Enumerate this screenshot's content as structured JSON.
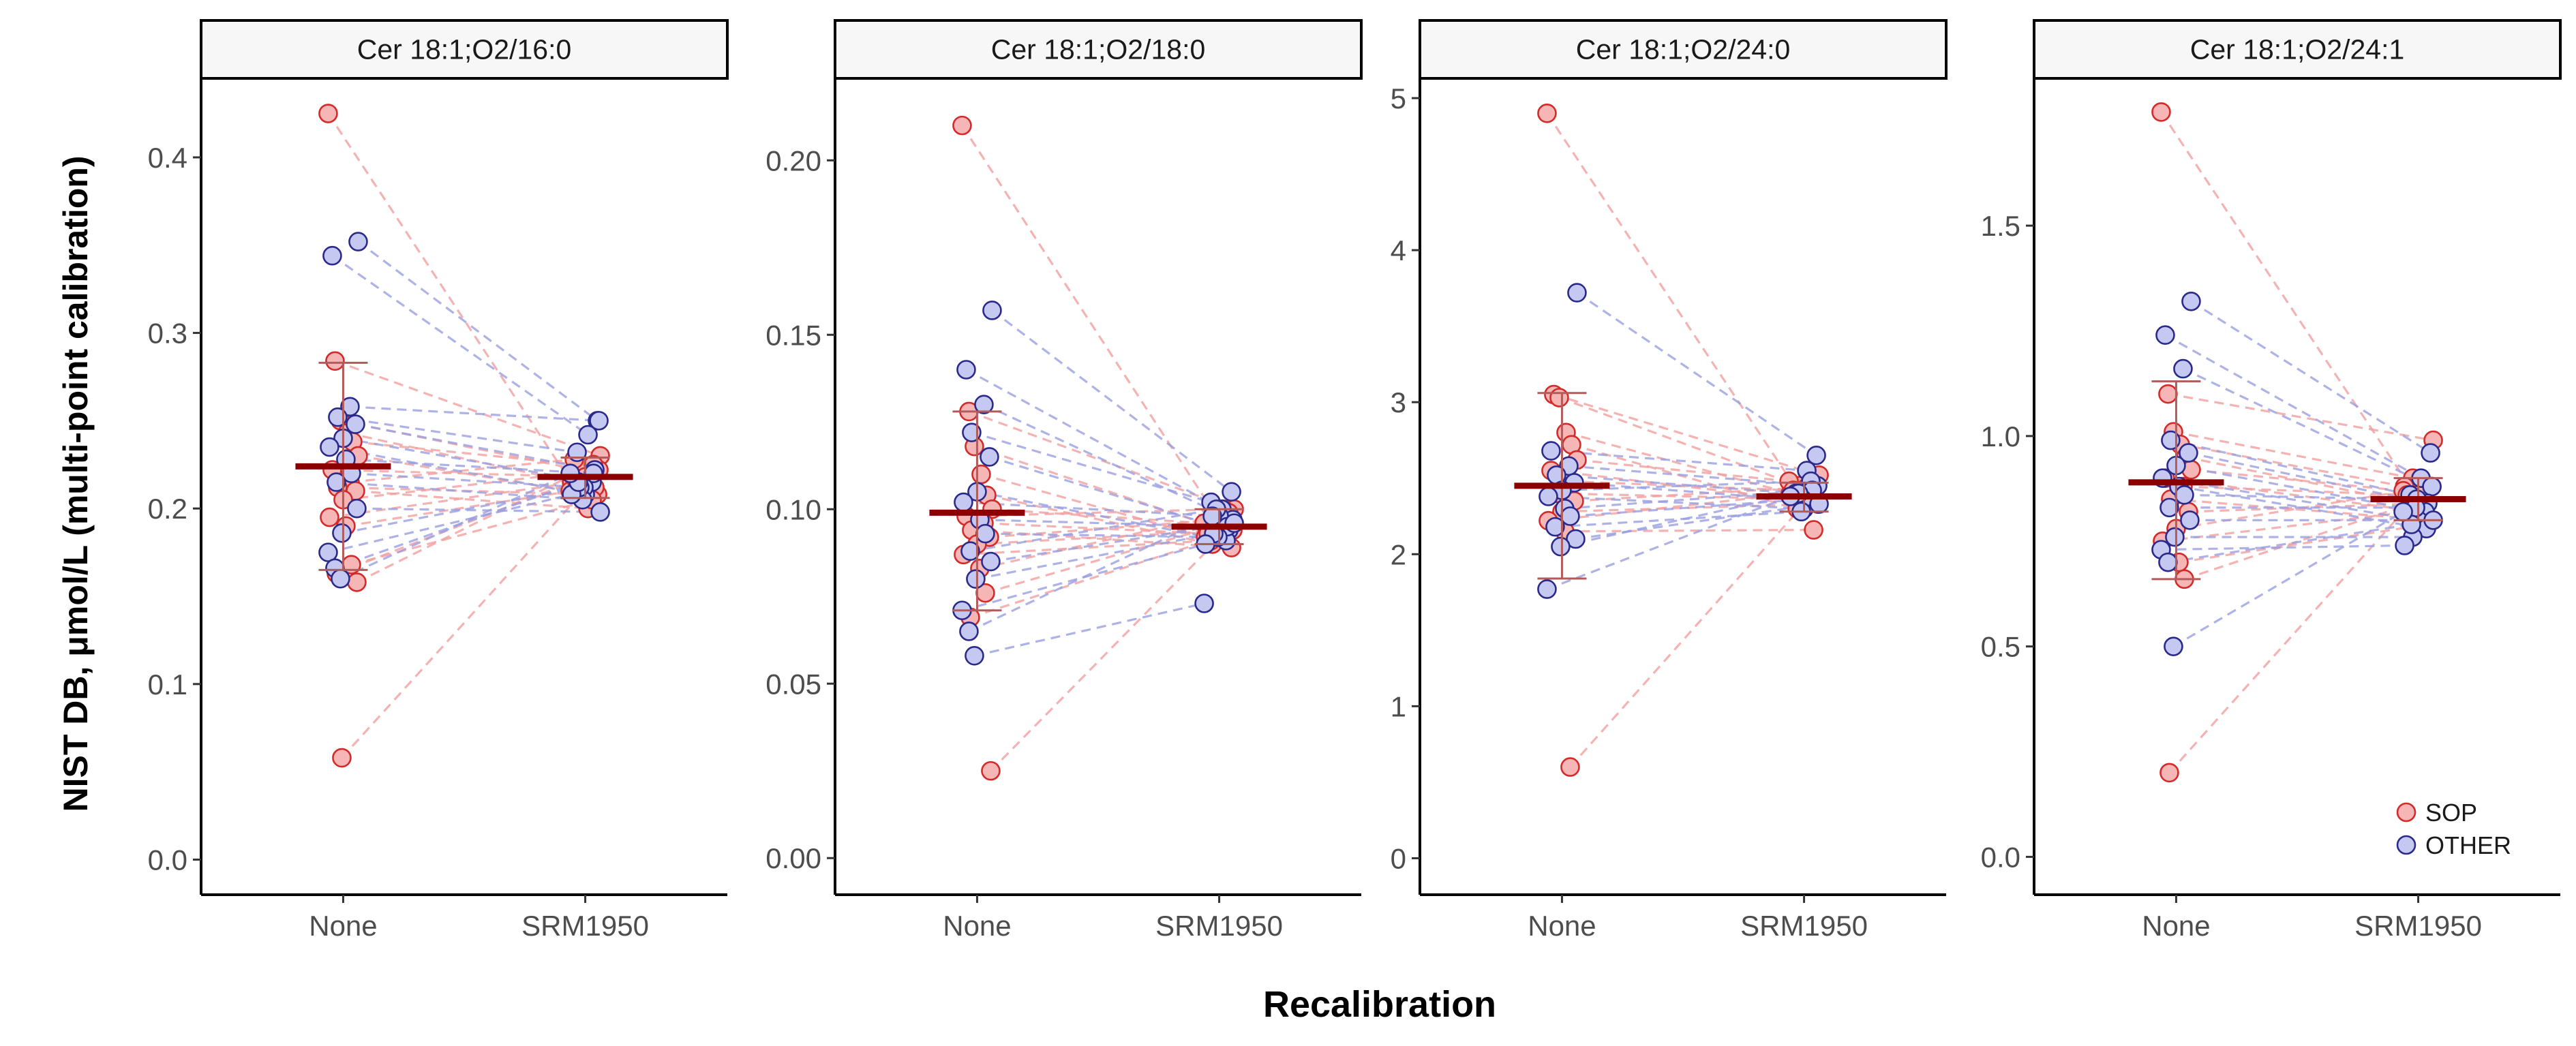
{
  "axes": {
    "xlabel": "Recalibration",
    "ylabel": "NIST DB, μmol/L (multi-point calibration)"
  },
  "legend": {
    "position": "bottom-right",
    "items": [
      {
        "label": "SOP",
        "fill": "#f7b6b6",
        "stroke": "#d42a2a"
      },
      {
        "label": "OTHER",
        "fill": "#c5c9f2",
        "stroke": "#2a2a8c"
      }
    ]
  },
  "colors": {
    "sop_fill": "#f7b6b6",
    "sop_stroke": "#d42a2a",
    "sop_line": "#f2a0a0",
    "other_fill": "#c5c9f2",
    "other_stroke": "#2a2a8c",
    "other_line": "#9aa0e0",
    "summary": "#8b0000",
    "errorbar": "#b35a5a"
  },
  "chart_data": [
    {
      "type": "scatter",
      "title": "Cer 18:1;O2/16:0",
      "categories": [
        "None",
        "SRM1950"
      ],
      "ylim": [
        -0.02,
        0.445
      ],
      "yticks": [
        0.0,
        0.1,
        0.2,
        0.3,
        0.4
      ],
      "ytick_labels": [
        "0.0",
        "0.1",
        "0.2",
        "0.3",
        "0.4"
      ],
      "grid": false,
      "summary": [
        {
          "category": "None",
          "mean": 0.224,
          "lower": 0.165,
          "upper": 0.283
        },
        {
          "category": "SRM1950",
          "mean": 0.218,
          "lower": 0.206,
          "upper": 0.229
        }
      ],
      "series": [
        {
          "name": "SOP",
          "pairs": [
            [
              0.425,
              0.205
            ],
            [
              0.284,
              0.23
            ],
            [
              0.25,
              0.222
            ],
            [
              0.243,
              0.215
            ],
            [
              0.238,
              0.225
            ],
            [
              0.23,
              0.21
            ],
            [
              0.222,
              0.218
            ],
            [
              0.215,
              0.228
            ],
            [
              0.212,
              0.208
            ],
            [
              0.21,
              0.2
            ],
            [
              0.205,
              0.222
            ],
            [
              0.195,
              0.215
            ],
            [
              0.19,
              0.212
            ],
            [
              0.168,
              0.205
            ],
            [
              0.163,
              0.218
            ],
            [
              0.158,
              0.225
            ],
            [
              0.058,
              0.21
            ]
          ]
        },
        {
          "name": "OTHER",
          "pairs": [
            [
              0.352,
              0.25
            ],
            [
              0.344,
              0.242
            ],
            [
              0.258,
              0.25
            ],
            [
              0.252,
              0.232
            ],
            [
              0.248,
              0.222
            ],
            [
              0.24,
              0.215
            ],
            [
              0.235,
              0.208
            ],
            [
              0.228,
              0.22
            ],
            [
              0.22,
              0.212
            ],
            [
              0.215,
              0.205
            ],
            [
              0.2,
              0.198
            ],
            [
              0.186,
              0.212
            ],
            [
              0.175,
              0.208
            ],
            [
              0.166,
              0.215
            ],
            [
              0.16,
              0.22
            ]
          ]
        }
      ]
    },
    {
      "type": "scatter",
      "title": "Cer 18:1;O2/18:0",
      "categories": [
        "None",
        "SRM1950"
      ],
      "ylim": [
        -0.0105,
        0.2235
      ],
      "yticks": [
        0.0,
        0.05,
        0.1,
        0.15,
        0.2
      ],
      "ytick_labels": [
        "0.00",
        "0.05",
        "0.10",
        "0.15",
        "0.20"
      ],
      "grid": false,
      "summary": [
        {
          "category": "None",
          "mean": 0.099,
          "lower": 0.071,
          "upper": 0.128
        },
        {
          "category": "SRM1950",
          "mean": 0.095,
          "lower": 0.09,
          "upper": 0.1
        }
      ],
      "series": [
        {
          "name": "SOP",
          "pairs": [
            [
              0.21,
              0.098
            ],
            [
              0.128,
              0.1
            ],
            [
              0.118,
              0.095
            ],
            [
              0.11,
              0.092
            ],
            [
              0.104,
              0.09
            ],
            [
              0.1,
              0.096
            ],
            [
              0.098,
              0.1
            ],
            [
              0.096,
              0.093
            ],
            [
              0.094,
              0.089
            ],
            [
              0.092,
              0.097
            ],
            [
              0.09,
              0.094
            ],
            [
              0.087,
              0.091
            ],
            [
              0.083,
              0.099
            ],
            [
              0.076,
              0.096
            ],
            [
              0.069,
              0.092
            ],
            [
              0.025,
              0.094
            ]
          ]
        },
        {
          "name": "OTHER",
          "pairs": [
            [
              0.157,
              0.105
            ],
            [
              0.14,
              0.1
            ],
            [
              0.13,
              0.097
            ],
            [
              0.122,
              0.102
            ],
            [
              0.115,
              0.094
            ],
            [
              0.105,
              0.091
            ],
            [
              0.102,
              0.098
            ],
            [
              0.097,
              0.095
            ],
            [
              0.093,
              0.092
            ],
            [
              0.088,
              0.1
            ],
            [
              0.085,
              0.096
            ],
            [
              0.08,
              0.093
            ],
            [
              0.071,
              0.09
            ],
            [
              0.065,
              0.098
            ],
            [
              0.058,
              0.073
            ]
          ]
        }
      ]
    },
    {
      "type": "scatter",
      "title": "Cer 18:1;O2/24:0",
      "categories": [
        "None",
        "SRM1950"
      ],
      "ylim": [
        -0.24,
        5.13
      ],
      "yticks": [
        0,
        1,
        2,
        3,
        4,
        5
      ],
      "ytick_labels": [
        "0",
        "1",
        "2",
        "3",
        "4",
        "5"
      ],
      "grid": false,
      "summary": [
        {
          "category": "None",
          "mean": 2.45,
          "lower": 1.84,
          "upper": 3.06
        },
        {
          "category": "SRM1950",
          "mean": 2.38,
          "lower": 2.28,
          "upper": 2.47
        }
      ],
      "series": [
        {
          "name": "SOP",
          "pairs": [
            [
              4.9,
              2.38
            ],
            [
              3.05,
              2.52
            ],
            [
              3.03,
              2.45
            ],
            [
              2.8,
              2.4
            ],
            [
              2.72,
              2.3
            ],
            [
              2.62,
              2.48
            ],
            [
              2.55,
              2.35
            ],
            [
              2.48,
              2.42
            ],
            [
              2.4,
              2.36
            ],
            [
              2.35,
              2.44
            ],
            [
              2.28,
              2.33
            ],
            [
              2.22,
              2.4
            ],
            [
              2.15,
              2.16
            ],
            [
              0.6,
              2.38
            ]
          ]
        },
        {
          "name": "OTHER",
          "pairs": [
            [
              3.72,
              2.65
            ],
            [
              2.68,
              2.55
            ],
            [
              2.58,
              2.45
            ],
            [
              2.52,
              2.4
            ],
            [
              2.47,
              2.35
            ],
            [
              2.42,
              2.48
            ],
            [
              2.38,
              2.3
            ],
            [
              2.3,
              2.42
            ],
            [
              2.25,
              2.36
            ],
            [
              2.18,
              2.28
            ],
            [
              2.1,
              2.33
            ],
            [
              2.05,
              2.4
            ],
            [
              1.77,
              2.38
            ]
          ]
        }
      ]
    },
    {
      "type": "scatter",
      "title": "Cer 18:1;O2/24:1",
      "categories": [
        "None",
        "SRM1950"
      ],
      "ylim": [
        -0.09,
        1.85
      ],
      "yticks": [
        0.0,
        0.5,
        1.0,
        1.5
      ],
      "ytick_labels": [
        "0.0",
        "0.5",
        "1.0",
        "1.5"
      ],
      "grid": false,
      "summary": [
        {
          "category": "None",
          "mean": 0.89,
          "lower": 0.66,
          "upper": 1.13
        },
        {
          "category": "SRM1950",
          "mean": 0.85,
          "lower": 0.8,
          "upper": 0.9
        }
      ],
      "series": [
        {
          "name": "SOP",
          "pairs": [
            [
              1.77,
              0.86
            ],
            [
              1.1,
              0.99
            ],
            [
              1.01,
              0.9
            ],
            [
              0.98,
              0.88
            ],
            [
              0.95,
              0.84
            ],
            [
              0.92,
              0.87
            ],
            [
              0.9,
              0.82
            ],
            [
              0.88,
              0.86
            ],
            [
              0.85,
              0.8
            ],
            [
              0.82,
              0.84
            ],
            [
              0.78,
              0.88
            ],
            [
              0.75,
              0.82
            ],
            [
              0.7,
              0.79
            ],
            [
              0.66,
              0.85
            ],
            [
              0.2,
              0.86
            ]
          ]
        },
        {
          "name": "OTHER",
          "pairs": [
            [
              1.32,
              0.96
            ],
            [
              1.24,
              0.9
            ],
            [
              1.16,
              0.88
            ],
            [
              0.99,
              0.86
            ],
            [
              0.96,
              0.84
            ],
            [
              0.93,
              0.82
            ],
            [
              0.9,
              0.8
            ],
            [
              0.88,
              0.78
            ],
            [
              0.86,
              0.85
            ],
            [
              0.83,
              0.83
            ],
            [
              0.8,
              0.8
            ],
            [
              0.76,
              0.76
            ],
            [
              0.73,
              0.74
            ],
            [
              0.7,
              0.79
            ],
            [
              0.5,
              0.82
            ]
          ]
        }
      ]
    }
  ]
}
